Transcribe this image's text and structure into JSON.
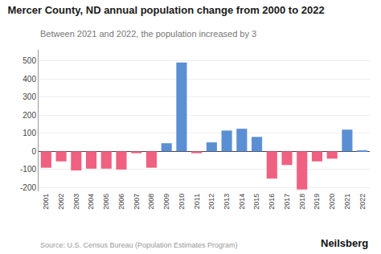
{
  "chart_data": {
    "type": "bar",
    "title": "Mercer County, ND annual population change from 2000 to 2022",
    "subtitle": "Between 2021 and 2022, the population increased by 3",
    "source": "Source: U.S. Census Bureau (Population Estimates Program)",
    "brand": "Neilsberg",
    "categories": [
      "2001",
      "2002",
      "2003",
      "2004",
      "2005",
      "2006",
      "2007",
      "2008",
      "2009",
      "2010",
      "2011",
      "2012",
      "2013",
      "2014",
      "2015",
      "2016",
      "2017",
      "2018",
      "2019",
      "2020",
      "2021",
      "2022"
    ],
    "values": [
      -90,
      -55,
      -105,
      -95,
      -95,
      -100,
      -10,
      -90,
      45,
      490,
      -10,
      50,
      115,
      125,
      80,
      -150,
      -75,
      -210,
      -55,
      -40,
      120,
      3
    ],
    "colors": [
      "#f06080",
      "#f06080",
      "#f06080",
      "#f06080",
      "#f06080",
      "#f06080",
      "#f06080",
      "#f06080",
      "#5b8fd4",
      "#5b8fd4",
      "#f06080",
      "#5b8fd4",
      "#5b8fd4",
      "#5b8fd4",
      "#5b8fd4",
      "#f06080",
      "#f06080",
      "#f06080",
      "#f06080",
      "#f06080",
      "#5b8fd4",
      "#5b8fd4"
    ],
    "ylim": [
      -220,
      560
    ],
    "yticks": [
      -200,
      -100,
      0,
      100,
      200,
      300,
      400,
      500
    ],
    "grid": true
  }
}
